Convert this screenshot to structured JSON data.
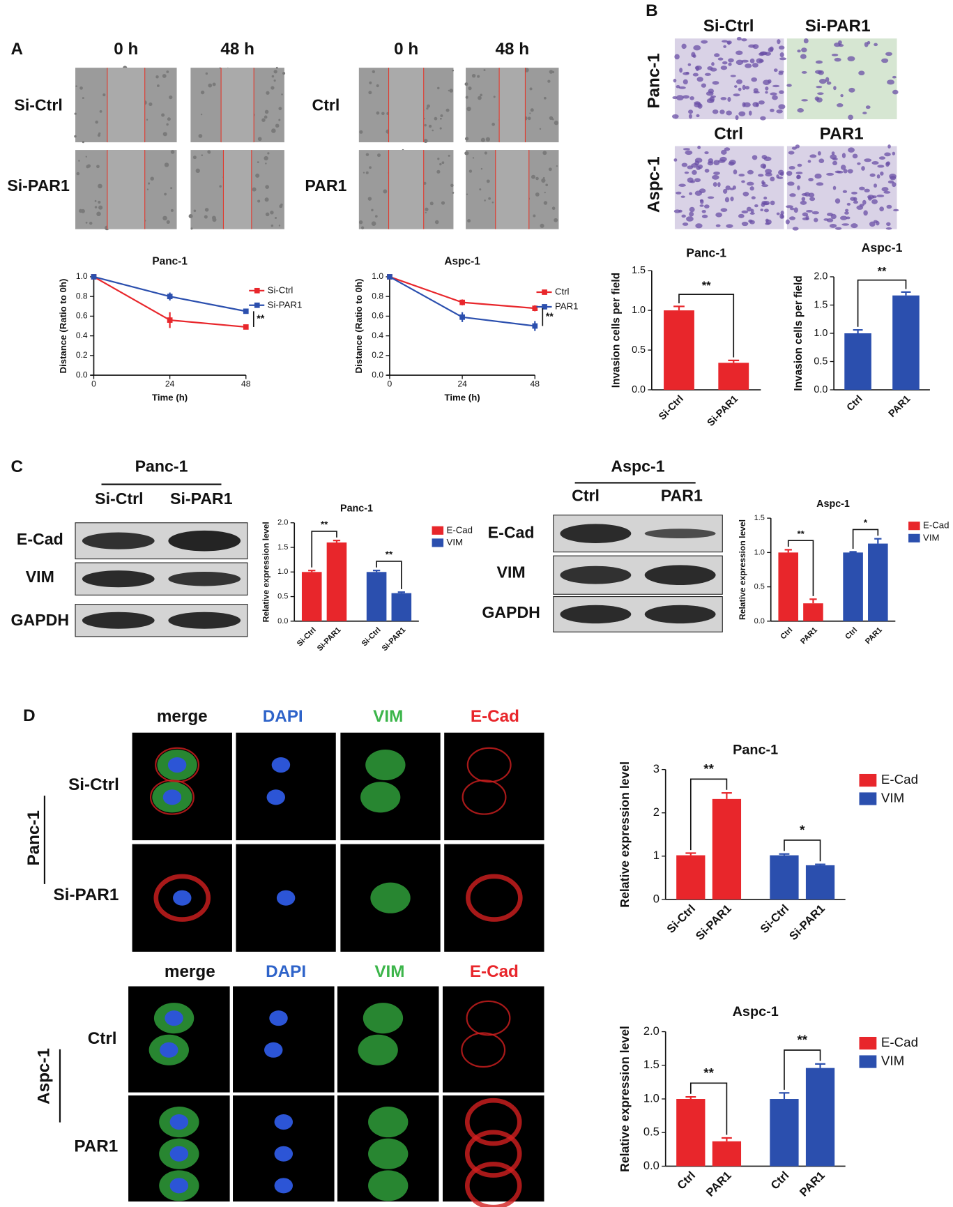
{
  "panel_labels": [
    "A",
    "B",
    "C",
    "D"
  ],
  "wound_healing": [
    {
      "time_points": [
        "0 h",
        "48 h"
      ],
      "conditions": [
        "Si-Ctrl",
        "Si-PAR1"
      ]
    },
    {
      "time_points": [
        "0 h",
        "48 h"
      ],
      "conditions": [
        "Ctrl",
        "PAR1"
      ]
    }
  ],
  "transwell": {
    "cell_lines": [
      "Panc-1",
      "Aspc-1"
    ],
    "conditions": [
      [
        "Si-Ctrl",
        "Si-PAR1"
      ],
      [
        "Ctrl",
        "PAR1"
      ]
    ]
  },
  "western_blot": [
    {
      "cell_line": "Panc-1",
      "lanes": [
        "Si-Ctrl",
        "Si-PAR1"
      ],
      "proteins": [
        "E-Cad",
        "VIM",
        "GAPDH"
      ]
    },
    {
      "cell_line": "Aspc-1",
      "lanes": [
        "Ctrl",
        "PAR1"
      ],
      "proteins": [
        "E-Cad",
        "VIM",
        "GAPDH"
      ]
    }
  ],
  "immunofluorescence": [
    {
      "cell_line": "Panc-1",
      "channels": [
        "merge",
        "DAPI",
        "VIM",
        "E-Cad"
      ],
      "conditions": [
        "Si-Ctrl",
        "Si-PAR1"
      ]
    },
    {
      "cell_line": "Aspc-1",
      "channels": [
        "merge",
        "DAPI",
        "VIM",
        "E-Cad"
      ],
      "conditions": [
        "Ctrl",
        "PAR1"
      ]
    }
  ],
  "chart_data": [
    {
      "type": "line",
      "title": "Panc-1",
      "x": [
        0,
        24,
        48
      ],
      "xlim": [
        0,
        48
      ],
      "xticks": [
        0,
        24,
        48
      ],
      "ylim": [
        0,
        1
      ],
      "yticks": [
        {
          "value": 0,
          "label": "0.0"
        },
        0.2,
        0.4,
        0.6,
        0.8,
        {
          "value": 1,
          "label": "1.0"
        }
      ],
      "x_label": "Time (h)",
      "y_label": "Distance (Ratio to 0h)",
      "series": [
        {
          "name": "Si-Ctrl",
          "color": "#e8262b",
          "values": [
            1,
            0.56,
            0.49
          ],
          "errors": [
            0.01,
            0.08,
            0.02
          ]
        },
        {
          "name": "Si-PAR1",
          "color": "#2b4fae",
          "values": [
            1,
            0.8,
            0.65
          ],
          "errors": [
            0.01,
            0.04,
            0.01
          ]
        }
      ],
      "significance": "**"
    },
    {
      "type": "line",
      "title": "Aspc-1",
      "x": [
        0,
        24,
        48
      ],
      "xlim": [
        0,
        48
      ],
      "xticks": [
        0,
        24,
        48
      ],
      "ylim": [
        0,
        1
      ],
      "yticks": [
        {
          "value": 0,
          "label": "0.0"
        },
        0.2,
        0.4,
        0.6,
        0.8,
        {
          "value": 1,
          "label": "1.0"
        }
      ],
      "x_label": "Time (h)",
      "y_label": "Distance (Ratio to 0h)",
      "series": [
        {
          "name": "Ctrl",
          "color": "#e8262b",
          "values": [
            1,
            0.74,
            0.68
          ],
          "errors": [
            0.01,
            0.03,
            0.03
          ]
        },
        {
          "name": "PAR1",
          "color": "#2b4fae",
          "values": [
            1,
            0.59,
            0.5
          ],
          "errors": [
            0.01,
            0.05,
            0.05
          ]
        }
      ],
      "significance": "**"
    },
    {
      "type": "bar",
      "title": "Panc-1",
      "categories": [
        "Si-Ctrl",
        "Si-PAR1"
      ],
      "values": [
        1.0,
        0.34
      ],
      "errors": [
        0.05,
        0.03
      ],
      "color": "#e8262b",
      "ylim": [
        0,
        1.5
      ],
      "yticks": [
        {
          "value": 0,
          "label": "0.0"
        },
        0.5,
        {
          "value": 1,
          "label": "1.0"
        },
        1.5
      ],
      "y_label": "Invasion cells per field",
      "significance": [
        "**"
      ]
    },
    {
      "type": "bar",
      "title": "Aspc-1",
      "categories": [
        "Ctrl",
        "PAR1"
      ],
      "values": [
        1.0,
        1.67
      ],
      "errors": [
        0.06,
        0.06
      ],
      "color": "#2b4fae",
      "ylim": [
        0,
        2
      ],
      "yticks": [
        {
          "value": 0,
          "label": "0.0"
        },
        0.5,
        {
          "value": 1,
          "label": "1.0"
        },
        1.5,
        {
          "value": 2,
          "label": "2.0"
        }
      ],
      "y_label": "Invasion cells per field",
      "significance": [
        "**"
      ]
    },
    {
      "type": "bar",
      "title": "Panc-1",
      "categories": [
        "Si-Ctrl",
        "Si-PAR1"
      ],
      "series": [
        {
          "name": "E-Cad",
          "color": "#e8262b",
          "values": [
            1.0,
            1.6
          ],
          "errors": [
            0.03,
            0.04
          ]
        },
        {
          "name": "VIM",
          "color": "#2b4fae",
          "values": [
            1.0,
            0.57
          ],
          "errors": [
            0.03,
            0.02
          ]
        }
      ],
      "ylim": [
        0,
        2
      ],
      "yticks": [
        {
          "value": 0,
          "label": "0.0"
        },
        0.5,
        {
          "value": 1,
          "label": "1.0"
        },
        1.5,
        {
          "value": 2,
          "label": "2.0"
        }
      ],
      "y_label": "Relative expression level",
      "significance": [
        "**",
        "**"
      ]
    },
    {
      "type": "bar",
      "title": "Aspc-1",
      "categories": [
        "Ctrl",
        "PAR1"
      ],
      "series": [
        {
          "name": "E-Cad",
          "color": "#e8262b",
          "values": [
            1.0,
            0.26
          ],
          "errors": [
            0.04,
            0.06
          ]
        },
        {
          "name": "VIM",
          "color": "#2b4fae",
          "values": [
            1.0,
            1.13
          ],
          "errors": [
            0.01,
            0.07
          ]
        }
      ],
      "ylim": [
        0,
        1.5
      ],
      "yticks": [
        {
          "value": 0,
          "label": "0.0"
        },
        0.5,
        {
          "value": 1,
          "label": "1.0"
        },
        1.5
      ],
      "y_label": "Relative expression level",
      "significance": [
        "**",
        "*"
      ]
    },
    {
      "type": "bar",
      "title": "Panc-1",
      "categories": [
        "Si-Ctrl",
        "Si-PAR1"
      ],
      "series": [
        {
          "name": "E-Cad",
          "color": "#e8262b",
          "values": [
            1.02,
            2.32
          ],
          "errors": [
            0.05,
            0.14
          ]
        },
        {
          "name": "VIM",
          "color": "#2b4fae",
          "values": [
            1.02,
            0.79
          ],
          "errors": [
            0.03,
            0.02
          ]
        }
      ],
      "ylim": [
        0,
        3
      ],
      "yticks": [
        0,
        1,
        2,
        3
      ],
      "y_label": "Relative expression level",
      "significance": [
        "**",
        "*"
      ]
    },
    {
      "type": "bar",
      "title": "Aspc-1",
      "categories": [
        "Ctrl",
        "PAR1"
      ],
      "series": [
        {
          "name": "E-Cad",
          "color": "#e8262b",
          "values": [
            1.0,
            0.37
          ],
          "errors": [
            0.03,
            0.05
          ]
        },
        {
          "name": "VIM",
          "color": "#2b4fae",
          "values": [
            1.0,
            1.46
          ],
          "errors": [
            0.09,
            0.06
          ]
        }
      ],
      "ylim": [
        0,
        2
      ],
      "yticks": [
        {
          "value": 0,
          "label": "0.0"
        },
        0.5,
        {
          "value": 1,
          "label": "1.0"
        },
        1.5,
        {
          "value": 2,
          "label": "2.0"
        }
      ],
      "y_label": "Relative expression level",
      "significance": [
        "**",
        "**"
      ]
    }
  ]
}
